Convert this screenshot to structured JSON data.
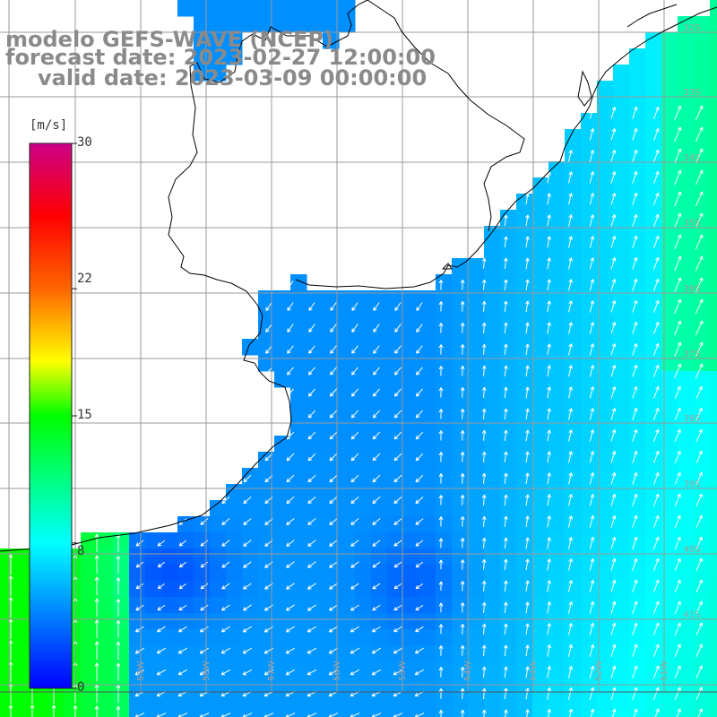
{
  "title": {
    "line1": "modelo GEFS-WAVE (NCEP)",
    "line2": "forecast date: 2023-02-27 12:00:00",
    "line3": "valid date: 2023-03-09 00:00:00"
  },
  "colorbar": {
    "unit": "[m/s]",
    "ticks": [
      {
        "label": "30",
        "value": 30
      },
      {
        "label": "22",
        "value": 22
      },
      {
        "label": "15",
        "value": 15
      },
      {
        "label": "8",
        "value": 8
      },
      {
        "label": "0",
        "value": 0
      }
    ],
    "stops": [
      {
        "value": 0,
        "color": "#0000ff"
      },
      {
        "value": 8,
        "color": "#00ffff"
      },
      {
        "value": 15,
        "color": "#00ff00"
      },
      {
        "value": 18,
        "color": "#ffff00"
      },
      {
        "value": 22,
        "color": "#ff6600"
      },
      {
        "value": 26,
        "color": "#ff0000"
      },
      {
        "value": 30,
        "color": "#cc0088"
      }
    ]
  },
  "lat_labels": [
    "32S",
    "33S",
    "34S",
    "35S",
    "36S",
    "37S",
    "38S",
    "39S",
    "40S",
    "41S"
  ],
  "lon_labels": [
    "59W",
    "58W",
    "57W",
    "56W",
    "55W",
    "54W",
    "53W",
    "52W",
    "51W"
  ],
  "colors": {
    "grid": "#9a9a9a",
    "coast": "#000000",
    "arrow": "#ffffff",
    "title": "#8a8a8a"
  }
}
